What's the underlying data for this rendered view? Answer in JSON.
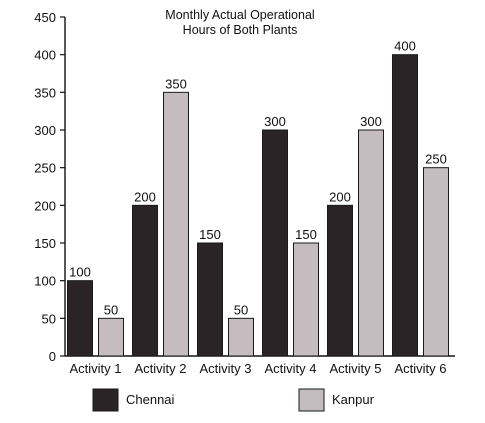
{
  "chart_data": {
    "type": "bar",
    "title": [
      "Monthly Actual Operational",
      "Hours of Both Plants"
    ],
    "xlabel": "",
    "ylabel": "",
    "ylim": [
      0,
      450
    ],
    "yticks": [
      0,
      50,
      100,
      150,
      200,
      250,
      300,
      350,
      400,
      450
    ],
    "categories": [
      "Activity 1",
      "Activity 2",
      "Activity 3",
      "Activity 4",
      "Activity 5",
      "Activity 6"
    ],
    "series": [
      {
        "name": "Chennai",
        "values": [
          100,
          200,
          150,
          300,
          200,
          400
        ],
        "color": "#2a2426"
      },
      {
        "name": "Kanpur",
        "values": [
          50,
          350,
          50,
          150,
          300,
          250
        ],
        "color": "#c4bcbf"
      }
    ],
    "legend_position": "bottom",
    "grid": false
  }
}
